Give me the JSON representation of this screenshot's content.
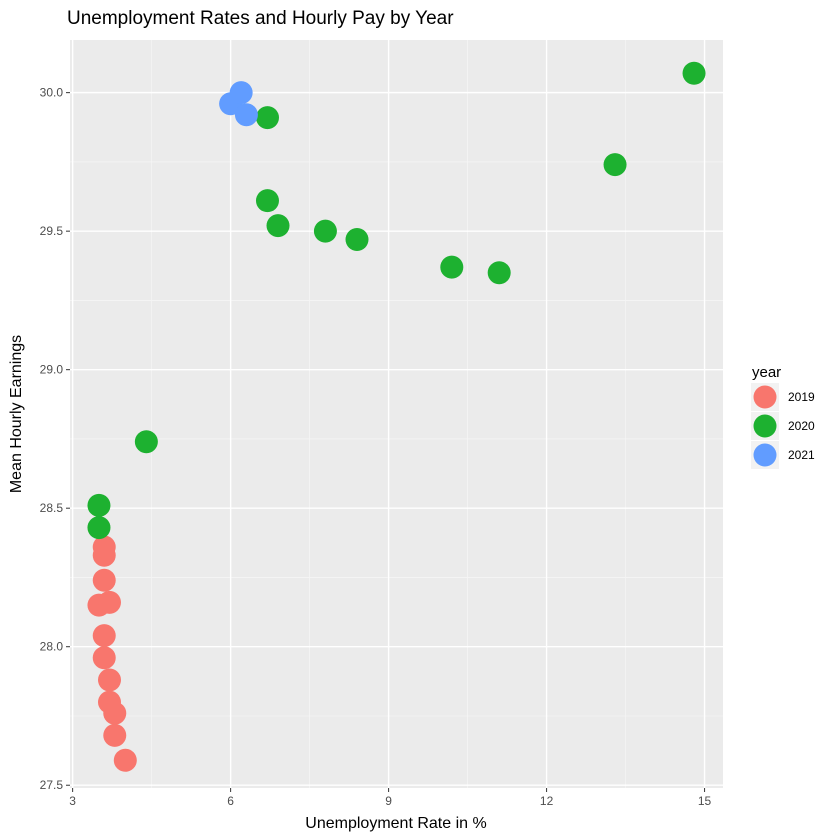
{
  "chart_data": {
    "type": "scatter",
    "title": "Unemployment Rates and Hourly Pay by Year",
    "xlabel": "Unemployment Rate in %",
    "ylabel": "Mean Hourly Earnings",
    "xlim": [
      2.95,
      15.35
    ],
    "ylim": [
      27.49,
      30.19
    ],
    "x_ticks": [
      3,
      6,
      9,
      12,
      15
    ],
    "x_tick_labels": [
      "3",
      "6",
      "9",
      "12",
      "15"
    ],
    "y_ticks": [
      27.5,
      28.0,
      28.5,
      29.0,
      29.5,
      30.0
    ],
    "y_tick_labels": [
      "27.5",
      "28.0",
      "28.5",
      "29.0",
      "29.5",
      "30.0"
    ],
    "grid": true,
    "legend": {
      "title": "year",
      "position": "right"
    },
    "series": [
      {
        "name": "2019",
        "color": "#F8766D",
        "points": [
          {
            "x": 4.0,
            "y": 27.59
          },
          {
            "x": 3.8,
            "y": 27.68
          },
          {
            "x": 3.8,
            "y": 27.76
          },
          {
            "x": 3.7,
            "y": 27.8
          },
          {
            "x": 3.7,
            "y": 27.88
          },
          {
            "x": 3.6,
            "y": 27.96
          },
          {
            "x": 3.6,
            "y": 28.04
          },
          {
            "x": 3.5,
            "y": 28.15
          },
          {
            "x": 3.7,
            "y": 28.16
          },
          {
            "x": 3.6,
            "y": 28.24
          },
          {
            "x": 3.6,
            "y": 28.33
          },
          {
            "x": 3.6,
            "y": 28.36
          }
        ]
      },
      {
        "name": "2020",
        "color": "#1DB130",
        "points": [
          {
            "x": 3.5,
            "y": 28.43
          },
          {
            "x": 3.5,
            "y": 28.51
          },
          {
            "x": 4.4,
            "y": 28.74
          },
          {
            "x": 14.8,
            "y": 30.07
          },
          {
            "x": 13.3,
            "y": 29.74
          },
          {
            "x": 11.1,
            "y": 29.35
          },
          {
            "x": 10.2,
            "y": 29.37
          },
          {
            "x": 8.4,
            "y": 29.47
          },
          {
            "x": 7.8,
            "y": 29.5
          },
          {
            "x": 6.9,
            "y": 29.52
          },
          {
            "x": 6.7,
            "y": 29.61
          },
          {
            "x": 6.7,
            "y": 29.91
          }
        ]
      },
      {
        "name": "2021",
        "color": "#619CFF",
        "points": [
          {
            "x": 6.0,
            "y": 29.96
          },
          {
            "x": 6.2,
            "y": 30.0
          },
          {
            "x": 6.3,
            "y": 29.92
          }
        ]
      }
    ]
  }
}
